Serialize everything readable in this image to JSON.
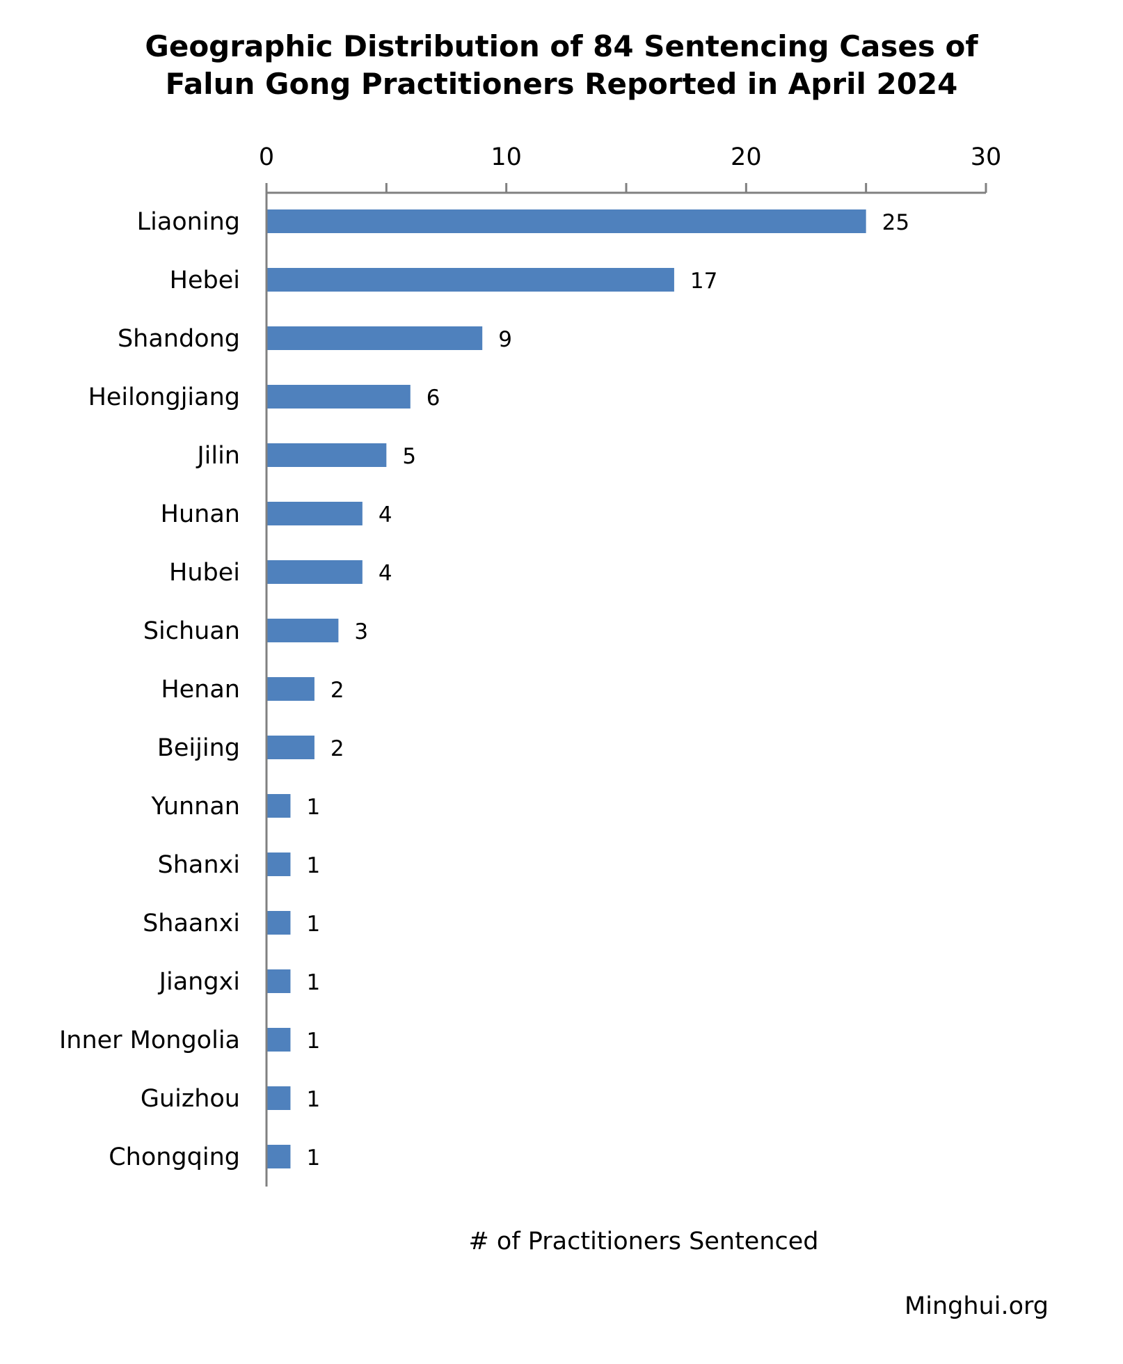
{
  "chart_data": {
    "type": "bar",
    "orientation": "horizontal",
    "title_lines": [
      "Geographic Distribution of 84 Sentencing Cases of",
      "Falun Gong Practitioners Reported in April 2024"
    ],
    "xlabel": "# of Practitioners Sentenced",
    "ylabel": "",
    "x_axis_position": "top",
    "xlim": [
      0,
      30
    ],
    "major_ticks": [
      0,
      10,
      20,
      30
    ],
    "minor_tick_step": 5,
    "grid": false,
    "legend": "none",
    "categories": [
      "Liaoning",
      "Hebei",
      "Shandong",
      "Heilongjiang",
      "Jilin",
      "Hunan",
      "Hubei",
      "Sichuan",
      "Henan",
      "Beijing",
      "Yunnan",
      "Shanxi",
      "Shaanxi",
      "Jiangxi",
      "Inner Mongolia",
      "Guizhou",
      "Chongqing"
    ],
    "values": [
      25,
      17,
      9,
      6,
      5,
      4,
      4,
      3,
      2,
      2,
      1,
      1,
      1,
      1,
      1,
      1,
      1
    ],
    "data_labels": true,
    "bar_color": "#4f81bd",
    "axis_color": "#808080"
  },
  "source_credit": "Minghui.org"
}
